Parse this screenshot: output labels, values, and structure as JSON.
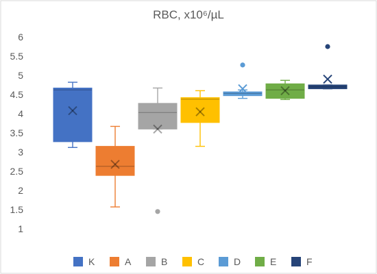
{
  "chart_data": {
    "type": "box",
    "title": "RBC, x10⁶/µL",
    "ylim": [
      1,
      6
    ],
    "yticks": [
      "1",
      "1.5",
      "2",
      "2.5",
      "3",
      "3.5",
      "4",
      "4.5",
      "5",
      "5.5",
      "6"
    ],
    "legend_position": "bottom",
    "grid": false,
    "series": [
      {
        "name": "K",
        "color": "#4472C4",
        "min": 3.12,
        "q1": 3.27,
        "median": 4.62,
        "q3": 4.67,
        "max": 4.82,
        "mean": 4.08,
        "outliers": []
      },
      {
        "name": "A",
        "color": "#ED7D31",
        "min": 1.57,
        "q1": 2.39,
        "median": 2.63,
        "q3": 3.15,
        "max": 3.67,
        "mean": 2.68,
        "outliers": []
      },
      {
        "name": "B",
        "color": "#A5A5A5",
        "min": 3.6,
        "q1": 3.6,
        "median": 4.03,
        "q3": 4.27,
        "max": 4.67,
        "mean": 3.6,
        "outliers": [
          1.45
        ]
      },
      {
        "name": "C",
        "color": "#FFC000",
        "min": 3.15,
        "q1": 3.77,
        "median": 4.38,
        "q3": 4.42,
        "max": 4.6,
        "mean": 4.05,
        "outliers": []
      },
      {
        "name": "D",
        "color": "#5B9BD5",
        "min": 4.4,
        "q1": 4.47,
        "median": 4.53,
        "q3": 4.57,
        "max": 4.62,
        "mean": 4.65,
        "outliers": [
          5.27
        ]
      },
      {
        "name": "E",
        "color": "#70AD47",
        "min": 4.37,
        "q1": 4.4,
        "median": 4.62,
        "q3": 4.78,
        "max": 4.87,
        "mean": 4.6,
        "outliers": []
      },
      {
        "name": "F",
        "color": "#264478",
        "min": 4.65,
        "q1": 4.65,
        "median": 4.7,
        "q3": 4.75,
        "max": 4.75,
        "mean": 4.9,
        "outliers": [
          5.75
        ]
      }
    ]
  }
}
